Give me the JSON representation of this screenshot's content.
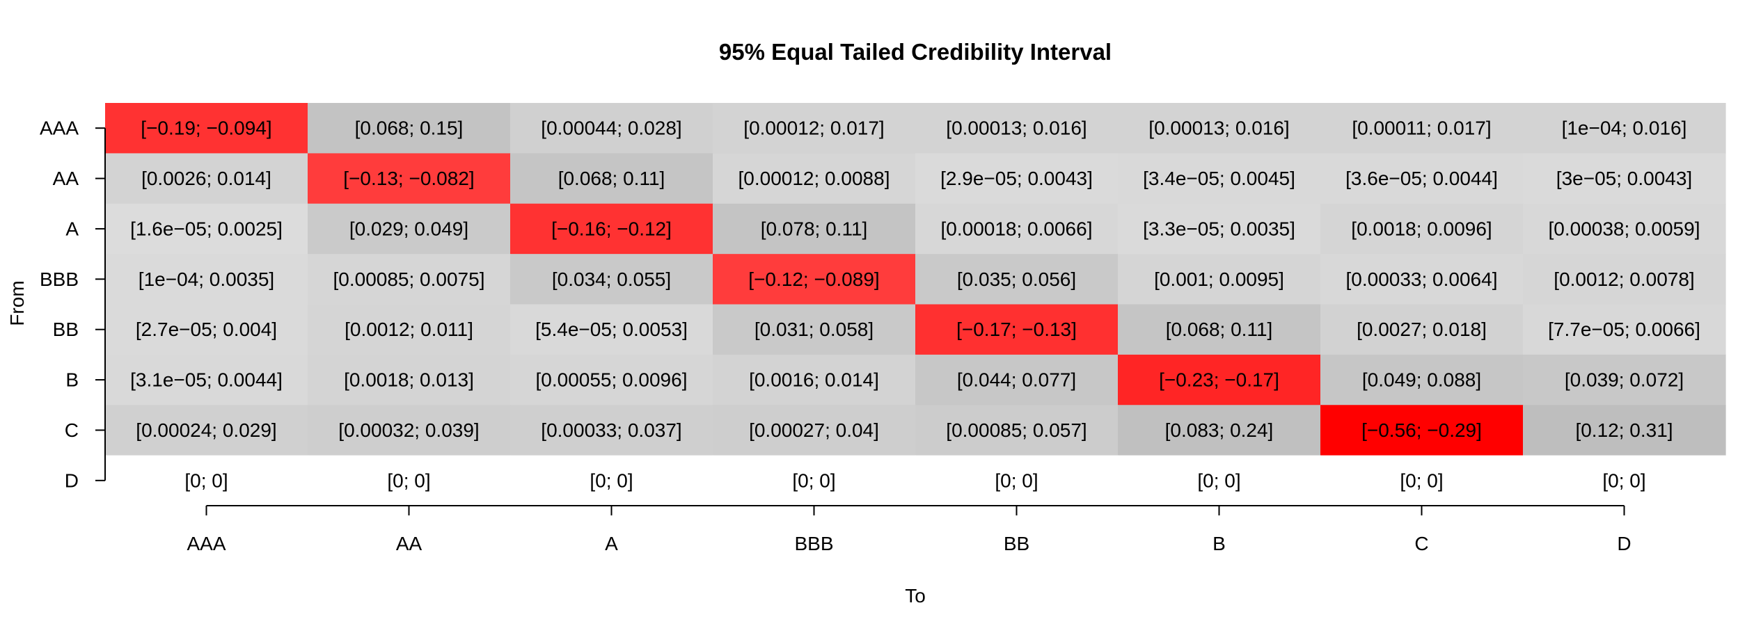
{
  "chart_data": {
    "type": "heatmap",
    "title": "95% Equal Tailed Credibility Interval",
    "xlabel": "To",
    "ylabel": "From",
    "x_categories": [
      "AAA",
      "AA",
      "A",
      "BBB",
      "BB",
      "B",
      "C",
      "D"
    ],
    "y_categories": [
      "AAA",
      "AA",
      "A",
      "BBB",
      "BB",
      "B",
      "C",
      "D"
    ],
    "intervals": [
      [
        [
          -0.19,
          -0.094
        ],
        [
          0.068,
          0.15
        ],
        [
          0.00044,
          0.028
        ],
        [
          0.00012,
          0.017
        ],
        [
          0.00013,
          0.016
        ],
        [
          0.00013,
          0.016
        ],
        [
          0.00011,
          0.017
        ],
        [
          0.0001,
          0.016
        ]
      ],
      [
        [
          0.0026,
          0.014
        ],
        [
          -0.13,
          -0.082
        ],
        [
          0.068,
          0.11
        ],
        [
          0.00012,
          0.0088
        ],
        [
          2.9e-05,
          0.0043
        ],
        [
          3.4e-05,
          0.0045
        ],
        [
          3.6e-05,
          0.0044
        ],
        [
          3e-05,
          0.0043
        ]
      ],
      [
        [
          1.6e-05,
          0.0025
        ],
        [
          0.029,
          0.049
        ],
        [
          -0.16,
          -0.12
        ],
        [
          0.078,
          0.11
        ],
        [
          0.00018,
          0.0066
        ],
        [
          3.3e-05,
          0.0035
        ],
        [
          0.0018,
          0.0096
        ],
        [
          0.00038,
          0.0059
        ]
      ],
      [
        [
          0.0001,
          0.0035
        ],
        [
          0.00085,
          0.0075
        ],
        [
          0.034,
          0.055
        ],
        [
          -0.12,
          -0.089
        ],
        [
          0.035,
          0.056
        ],
        [
          0.001,
          0.0095
        ],
        [
          0.00033,
          0.0064
        ],
        [
          0.0012,
          0.0078
        ]
      ],
      [
        [
          2.7e-05,
          0.004
        ],
        [
          0.0012,
          0.011
        ],
        [
          5.4e-05,
          0.0053
        ],
        [
          0.031,
          0.058
        ],
        [
          -0.17,
          -0.13
        ],
        [
          0.068,
          0.11
        ],
        [
          0.0027,
          0.018
        ],
        [
          7.7e-05,
          0.0066
        ]
      ],
      [
        [
          3.1e-05,
          0.0044
        ],
        [
          0.0018,
          0.013
        ],
        [
          0.00055,
          0.0096
        ],
        [
          0.0016,
          0.014
        ],
        [
          0.044,
          0.077
        ],
        [
          -0.23,
          -0.17
        ],
        [
          0.049,
          0.088
        ],
        [
          0.039,
          0.072
        ]
      ],
      [
        [
          0.00024,
          0.029
        ],
        [
          0.00032,
          0.039
        ],
        [
          0.00033,
          0.037
        ],
        [
          0.00027,
          0.04
        ],
        [
          0.00085,
          0.057
        ],
        [
          0.083,
          0.24
        ],
        [
          -0.56,
          -0.29
        ],
        [
          0.12,
          0.31
        ]
      ],
      [
        [
          0,
          0
        ],
        [
          0,
          0
        ],
        [
          0,
          0
        ],
        [
          0,
          0
        ],
        [
          0,
          0
        ],
        [
          0,
          0
        ],
        [
          0,
          0
        ],
        [
          0,
          0
        ]
      ]
    ],
    "cell_labels": [
      [
        "[−0.19; −0.094]",
        "[0.068; 0.15]",
        "[0.00044; 0.028]",
        "[0.00012; 0.017]",
        "[0.00013; 0.016]",
        "[0.00013; 0.016]",
        "[0.00011; 0.017]",
        "[1e−04; 0.016]"
      ],
      [
        "[0.0026; 0.014]",
        "[−0.13; −0.082]",
        "[0.068; 0.11]",
        "[0.00012; 0.0088]",
        "[2.9e−05; 0.0043]",
        "[3.4e−05; 0.0045]",
        "[3.6e−05; 0.0044]",
        "[3e−05; 0.0043]"
      ],
      [
        "[1.6e−05; 0.0025]",
        "[0.029; 0.049]",
        "[−0.16; −0.12]",
        "[0.078; 0.11]",
        "[0.00018; 0.0066]",
        "[3.3e−05; 0.0035]",
        "[0.0018; 0.0096]",
        "[0.00038; 0.0059]"
      ],
      [
        "[1e−04; 0.0035]",
        "[0.00085; 0.0075]",
        "[0.034; 0.055]",
        "[−0.12; −0.089]",
        "[0.035; 0.056]",
        "[0.001; 0.0095]",
        "[0.00033; 0.0064]",
        "[0.0012; 0.0078]"
      ],
      [
        "[2.7e−05; 0.004]",
        "[0.0012; 0.011]",
        "[5.4e−05; 0.0053]",
        "[0.031; 0.058]",
        "[−0.17; −0.13]",
        "[0.068; 0.11]",
        "[0.0027; 0.018]",
        "[7.7e−05; 0.0066]"
      ],
      [
        "[3.1e−05; 0.0044]",
        "[0.0018; 0.013]",
        "[0.00055; 0.0096]",
        "[0.0016; 0.014]",
        "[0.044; 0.077]",
        "[−0.23; −0.17]",
        "[0.049; 0.088]",
        "[0.039; 0.072]"
      ],
      [
        "[0.00024; 0.029]",
        "[0.00032; 0.039]",
        "[0.00033; 0.037]",
        "[0.00027; 0.04]",
        "[0.00085; 0.057]",
        "[0.083; 0.24]",
        "[−0.56; −0.29]",
        "[0.12; 0.31]"
      ],
      [
        "[0; 0]",
        "[0; 0]",
        "[0; 0]",
        "[0; 0]",
        "[0; 0]",
        "[0; 0]",
        "[0; 0]",
        "[0; 0]"
      ]
    ],
    "colors": {
      "negative": "#ff0000",
      "positive": "#bebebe",
      "zero": "#ffffff"
    },
    "legend": "none",
    "grid": false
  }
}
